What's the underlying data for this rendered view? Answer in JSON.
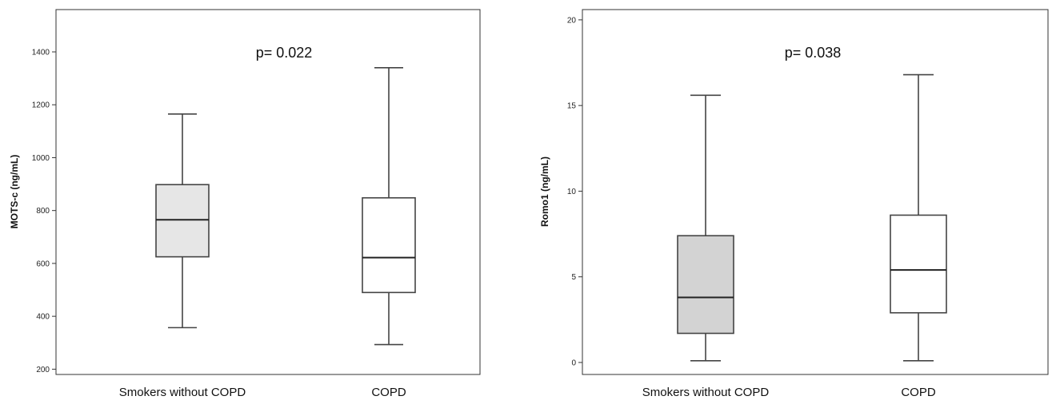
{
  "chart_data": [
    {
      "type": "boxplot",
      "ylabel": "MOTS-c (ng/mL)",
      "ylim": [
        180,
        1560
      ],
      "yticks": [
        200,
        400,
        600,
        800,
        1000,
        1200,
        1400
      ],
      "annotation": "p= 0.022",
      "categories": [
        "Smokers without COPD",
        "COPD"
      ],
      "boxes": [
        {
          "min": 357,
          "q1": 625,
          "median": 765,
          "q3": 898,
          "max": 1165,
          "fill": "#e6e6e6"
        },
        {
          "min": 293,
          "q1": 490,
          "median": 622,
          "q3": 848,
          "max": 1340,
          "fill": "#ffffff"
        }
      ],
      "grid": false
    },
    {
      "type": "boxplot",
      "ylabel": "Romo1 (ng/mL)",
      "ylim": [
        -0.7,
        20.6
      ],
      "yticks": [
        0,
        5,
        10,
        15,
        20
      ],
      "annotation": "p= 0.038",
      "categories": [
        "Smokers without COPD",
        "COPD"
      ],
      "boxes": [
        {
          "min": 0.1,
          "q1": 1.7,
          "median": 3.8,
          "q3": 7.4,
          "max": 15.6,
          "fill": "#d3d3d3"
        },
        {
          "min": 0.1,
          "q1": 2.9,
          "median": 5.4,
          "q3": 8.6,
          "max": 16.8,
          "fill": "#ffffff"
        }
      ],
      "grid": false
    }
  ]
}
